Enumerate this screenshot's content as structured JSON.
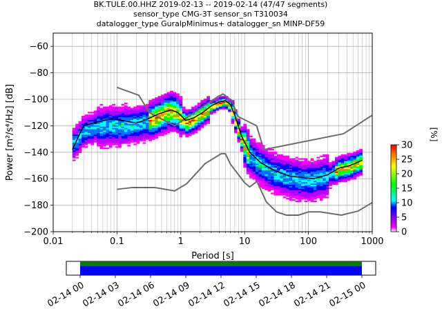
{
  "chart_data": {
    "type": "heatmap",
    "title_lines": [
      "BK.TULE.00.HHZ   2019-02-13 -- 2019-02-14  (47/47 segments)",
      "sensor_type CMG-3T sensor_sn T310034",
      "datalogger_type GuralpMinimus+ datalogger_sn MINP-DF59"
    ],
    "xlabel": "Period [s]",
    "ylabel": "Power [m²/s⁴/Hz] [dB]",
    "x_scale": "log",
    "xlim": [
      0.01,
      1000
    ],
    "ylim": [
      -200,
      -50
    ],
    "x_ticks": [
      {
        "value": 0.01,
        "label": "0.01"
      },
      {
        "value": 0.1,
        "label": "0.1"
      },
      {
        "value": 1,
        "label": "1"
      },
      {
        "value": 10,
        "label": "10"
      },
      {
        "value": 100,
        "label": "100"
      },
      {
        "value": 1000,
        "label": "1000"
      }
    ],
    "y_ticks": [
      {
        "value": -60,
        "label": "−60"
      },
      {
        "value": -80,
        "label": "−80"
      },
      {
        "value": -100,
        "label": "−100"
      },
      {
        "value": -120,
        "label": "−120"
      },
      {
        "value": -140,
        "label": "−140"
      },
      {
        "value": -160,
        "label": "−160"
      },
      {
        "value": -180,
        "label": "−180"
      },
      {
        "value": -200,
        "label": "−200"
      }
    ],
    "grid": true,
    "colorbar": {
      "label": "[%]",
      "min": 0,
      "max": 30,
      "ticks": [
        {
          "value": 0,
          "label": "0"
        },
        {
          "value": 5,
          "label": "5"
        },
        {
          "value": 10,
          "label": "10"
        },
        {
          "value": 15,
          "label": "15"
        },
        {
          "value": 20,
          "label": "20"
        },
        {
          "value": 25,
          "label": "25"
        },
        {
          "value": 30,
          "label": "30"
        }
      ],
      "colors": [
        "#ffffff",
        "#ff00ff",
        "#0000ff",
        "#00ffff",
        "#00ff00",
        "#ffff00",
        "#ff8000",
        "#ff0000"
      ]
    },
    "noise_model_high": [
      {
        "x": 0.1,
        "y": -91
      },
      {
        "x": 0.22,
        "y": -97
      },
      {
        "x": 0.32,
        "y": -110
      },
      {
        "x": 0.8,
        "y": -120
      },
      {
        "x": 3.8,
        "y": -98
      },
      {
        "x": 4.6,
        "y": -96
      },
      {
        "x": 6.3,
        "y": -101
      },
      {
        "x": 7.9,
        "y": -113
      },
      {
        "x": 15.4,
        "y": -120
      },
      {
        "x": 20,
        "y": -138
      },
      {
        "x": 354.8,
        "y": -126
      },
      {
        "x": 1000,
        "y": -112
      }
    ],
    "noise_model_low": [
      {
        "x": 0.1,
        "y": -168
      },
      {
        "x": 0.17,
        "y": -166.7
      },
      {
        "x": 0.4,
        "y": -166.7
      },
      {
        "x": 0.8,
        "y": -169.2
      },
      {
        "x": 1.24,
        "y": -163.7
      },
      {
        "x": 2.4,
        "y": -148.6
      },
      {
        "x": 4.3,
        "y": -141.1
      },
      {
        "x": 5,
        "y": -141.1
      },
      {
        "x": 6,
        "y": -149
      },
      {
        "x": 10,
        "y": -163
      },
      {
        "x": 12,
        "y": -166.2
      },
      {
        "x": 15.6,
        "y": -162.1
      },
      {
        "x": 21.9,
        "y": -177.5
      },
      {
        "x": 31.6,
        "y": -185
      },
      {
        "x": 45,
        "y": -187.5
      },
      {
        "x": 70,
        "y": -187.5
      },
      {
        "x": 101,
        "y": -185
      },
      {
        "x": 154,
        "y": -185
      },
      {
        "x": 328,
        "y": -187.5
      },
      {
        "x": 600,
        "y": -184.4
      },
      {
        "x": 1000,
        "y": -178
      }
    ],
    "mean_curve": [
      {
        "x": 0.02,
        "y": -138
      },
      {
        "x": 0.025,
        "y": -128
      },
      {
        "x": 0.03,
        "y": -120
      },
      {
        "x": 0.05,
        "y": -117
      },
      {
        "x": 0.08,
        "y": -115
      },
      {
        "x": 0.12,
        "y": -116
      },
      {
        "x": 0.2,
        "y": -118
      },
      {
        "x": 0.3,
        "y": -115
      },
      {
        "x": 0.45,
        "y": -111
      },
      {
        "x": 0.7,
        "y": -108
      },
      {
        "x": 0.9,
        "y": -110
      },
      {
        "x": 1.2,
        "y": -116
      },
      {
        "x": 1.6,
        "y": -114
      },
      {
        "x": 2.2,
        "y": -110
      },
      {
        "x": 3,
        "y": -105
      },
      {
        "x": 4,
        "y": -102
      },
      {
        "x": 5,
        "y": -101
      },
      {
        "x": 6,
        "y": -104
      },
      {
        "x": 7,
        "y": -112
      },
      {
        "x": 9,
        "y": -128
      },
      {
        "x": 12,
        "y": -140
      },
      {
        "x": 18,
        "y": -148
      },
      {
        "x": 30,
        "y": -154
      },
      {
        "x": 50,
        "y": -158
      },
      {
        "x": 80,
        "y": -159
      },
      {
        "x": 120,
        "y": -160
      },
      {
        "x": 200,
        "y": -157
      },
      {
        "x": 300,
        "y": -152
      },
      {
        "x": 450,
        "y": -150
      },
      {
        "x": 700,
        "y": -146
      }
    ],
    "mode_curve": [
      {
        "x": 0.02,
        "y": -134
      },
      {
        "x": 0.025,
        "y": -130
      },
      {
        "x": 0.03,
        "y": -124
      },
      {
        "x": 0.05,
        "y": -121
      },
      {
        "x": 0.08,
        "y": -120
      },
      {
        "x": 0.12,
        "y": -120
      },
      {
        "x": 0.2,
        "y": -119
      },
      {
        "x": 0.3,
        "y": -117
      },
      {
        "x": 0.45,
        "y": -113
      },
      {
        "x": 0.7,
        "y": -109
      },
      {
        "x": 0.9,
        "y": -111
      },
      {
        "x": 1.2,
        "y": -118
      },
      {
        "x": 1.6,
        "y": -116
      },
      {
        "x": 2.2,
        "y": -111
      },
      {
        "x": 3,
        "y": -106
      },
      {
        "x": 4,
        "y": -103
      },
      {
        "x": 5,
        "y": -102
      },
      {
        "x": 6,
        "y": -105
      },
      {
        "x": 7,
        "y": -114
      },
      {
        "x": 9,
        "y": -130
      },
      {
        "x": 12,
        "y": -142
      },
      {
        "x": 18,
        "y": -150
      },
      {
        "x": 30,
        "y": -156
      },
      {
        "x": 50,
        "y": -159
      },
      {
        "x": 80,
        "y": -161
      },
      {
        "x": 120,
        "y": -161
      },
      {
        "x": 200,
        "y": -158
      },
      {
        "x": 300,
        "y": -153
      },
      {
        "x": 450,
        "y": -151
      },
      {
        "x": 700,
        "y": -147
      }
    ],
    "coverage": {
      "tick_labels": [
        "02-14 00",
        "02-14 03",
        "02-14 06",
        "02-14 09",
        "02-14 12",
        "02-14 15",
        "02-14 18",
        "02-14 21",
        "02-15 00"
      ],
      "data_color": "#0000ff",
      "used_color": "#008000"
    }
  }
}
